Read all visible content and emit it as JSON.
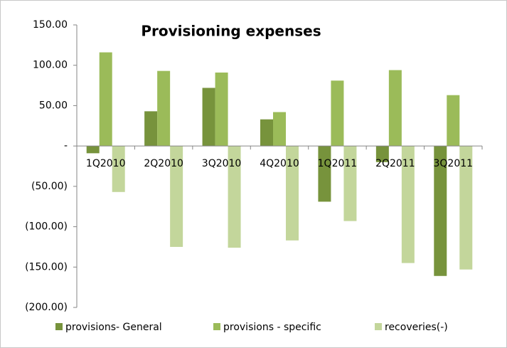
{
  "chart_data": {
    "type": "bar",
    "title": "Provisioning expenses",
    "categories": [
      "1Q2010",
      "2Q2010",
      "3Q2010",
      "4Q2010",
      "1Q2011",
      "2Q2011",
      "3Q2011"
    ],
    "series": [
      {
        "name": "provisions- General",
        "color": "#77933c",
        "values": [
          -9,
          43,
          72,
          33,
          -69,
          -20,
          -161
        ]
      },
      {
        "name": "provisions - specific",
        "color": "#9bbb59",
        "values": [
          116,
          93,
          91,
          42,
          81,
          94,
          63
        ]
      },
      {
        "name": "recoveries(-)",
        "color": "#c3d69b",
        "values": [
          -57,
          -125,
          -126,
          -117,
          -93,
          -145,
          -153
        ]
      }
    ],
    "ylim": [
      -200,
      150
    ],
    "yticks": [
      {
        "value": -200,
        "label": "(200.00)"
      },
      {
        "value": -150,
        "label": "(150.00)"
      },
      {
        "value": -100,
        "label": "(100.00)"
      },
      {
        "value": -50,
        "label": "(50.00)"
      },
      {
        "value": 0,
        "label": "-"
      },
      {
        "value": 50,
        "label": "50.00"
      },
      {
        "value": 100,
        "label": "100.00"
      },
      {
        "value": 150,
        "label": "150.00"
      }
    ],
    "legend": "bottom"
  }
}
